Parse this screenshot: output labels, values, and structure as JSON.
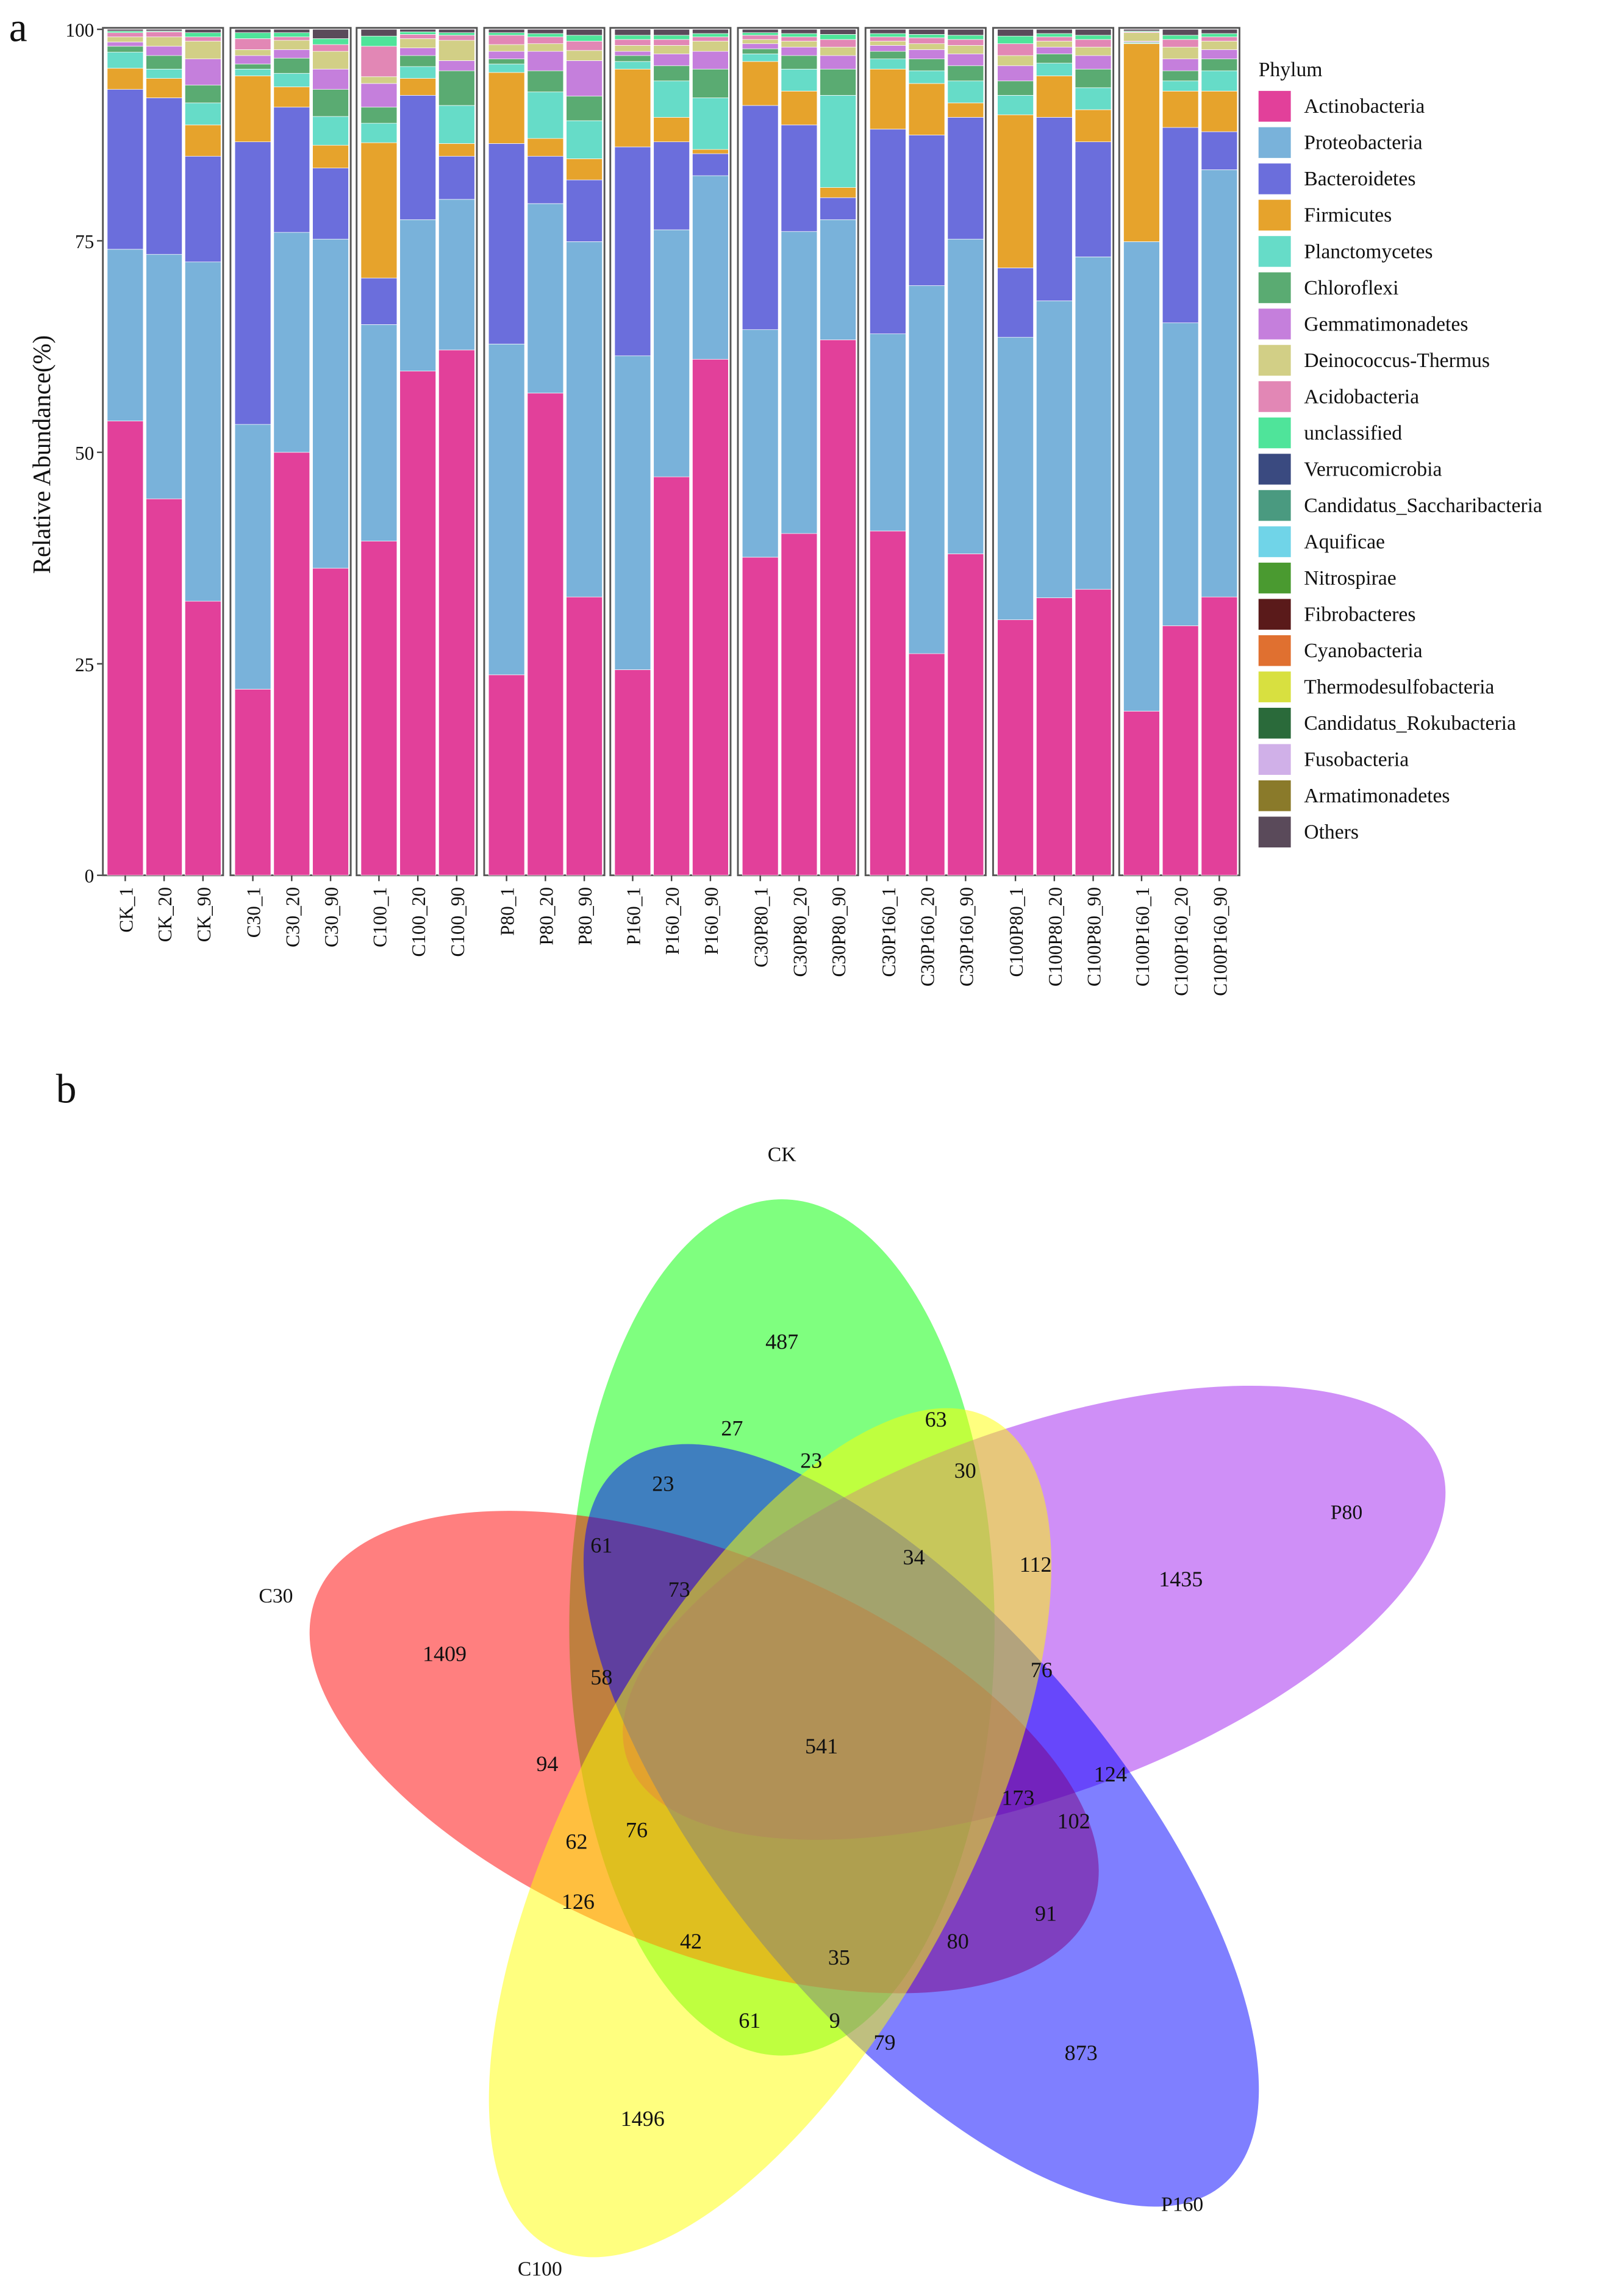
{
  "chart_data": [
    {
      "type": "bar",
      "stacked": true,
      "panel_label": "a",
      "ylabel": "Relative Abundance(%)",
      "ylim": [
        0,
        100
      ],
      "yticks": [
        "0",
        "25",
        "50",
        "75",
        "100"
      ],
      "legend_title": "Phylum",
      "legend_position": "right",
      "phyla": [
        "Actinobacteria",
        "Proteobacteria",
        "Bacteroidetes",
        "Firmicutes",
        "Planctomycetes",
        "Chloroflexi",
        "Gemmatimonadetes",
        "Deinococcus-Thermus",
        "Acidobacteria",
        "unclassified",
        "Verrucomicrobia",
        "Candidatus_Saccharibacteria",
        "Aquificae",
        "Nitrospirae",
        "Fibrobacteres",
        "Cyanobacteria",
        "Thermodesulfobacteria",
        "Candidatus_Rokubacteria",
        "Fusobacteria",
        "Armatimonadetes",
        "Others"
      ],
      "colors": [
        "#e2409a",
        "#79b2da",
        "#6b6edc",
        "#e6a32c",
        "#66dcc8",
        "#5aab72",
        "#c57fdc",
        "#d2cf86",
        "#e287b5",
        "#4fe49a",
        "#3a4a80",
        "#4a9a80",
        "#70d4e8",
        "#4a9a30",
        "#5a1a1a",
        "#e07030",
        "#d8e040",
        "#2a6a3a",
        "#d0b0e8",
        "#8a7a2a",
        "#5a4a5a"
      ],
      "groups": [
        {
          "name": "CK",
          "samples": [
            {
              "label": "CK_1",
              "cumulative_percent": [
                53.7,
                74.0,
                92.9,
                95.4,
                97.3,
                98.0,
                98.5,
                99.1,
                99.6,
                99.8
              ]
            },
            {
              "label": "CK_20",
              "cumulative_percent": [
                44.5,
                73.4,
                91.9,
                94.2,
                95.3,
                96.9,
                98.0,
                99.1,
                99.7,
                99.8
              ]
            },
            {
              "label": "CK_90",
              "cumulative_percent": [
                32.4,
                72.5,
                85.0,
                88.7,
                91.3,
                93.4,
                96.5,
                98.6,
                99.1,
                99.6
              ]
            }
          ]
        },
        {
          "name": "C30",
          "samples": [
            {
              "label": "C30_1",
              "cumulative_percent": [
                22.0,
                53.3,
                86.7,
                94.5,
                95.3,
                95.9,
                96.9,
                97.6,
                98.9,
                99.6
              ]
            },
            {
              "label": "C30_20",
              "cumulative_percent": [
                50.0,
                76.0,
                90.8,
                93.2,
                94.8,
                96.6,
                97.6,
                98.7,
                99.1,
                99.6
              ]
            },
            {
              "label": "C30_90",
              "cumulative_percent": [
                36.3,
                75.2,
                83.6,
                86.3,
                89.7,
                92.9,
                95.3,
                97.4,
                98.2,
                98.9
              ]
            }
          ]
        },
        {
          "name": "C100",
          "samples": [
            {
              "label": "C100_1",
              "cumulative_percent": [
                39.5,
                65.1,
                70.6,
                86.6,
                88.9,
                90.8,
                93.6,
                94.4,
                98.0,
                99.2
              ]
            },
            {
              "label": "C100_20",
              "cumulative_percent": [
                59.6,
                77.5,
                92.2,
                94.2,
                95.6,
                96.9,
                97.8,
                98.9,
                99.4,
                99.7
              ]
            },
            {
              "label": "C100_90",
              "cumulative_percent": [
                62.1,
                79.9,
                85.0,
                86.5,
                91.0,
                95.1,
                96.3,
                98.7,
                99.3,
                99.6
              ]
            }
          ]
        },
        {
          "name": "P80",
          "samples": [
            {
              "label": "P80_1",
              "cumulative_percent": [
                23.7,
                62.8,
                86.5,
                94.9,
                95.9,
                96.5,
                97.4,
                98.2,
                99.3,
                99.6
              ]
            },
            {
              "label": "P80_20",
              "cumulative_percent": [
                57.0,
                79.4,
                85.0,
                87.1,
                92.6,
                95.1,
                97.4,
                98.3,
                99.1,
                99.5
              ]
            },
            {
              "label": "P80_90",
              "cumulative_percent": [
                32.9,
                74.9,
                82.2,
                84.7,
                89.2,
                92.1,
                96.3,
                97.5,
                98.6,
                99.3
              ]
            }
          ]
        },
        {
          "name": "P160",
          "samples": [
            {
              "label": "P160_1",
              "cumulative_percent": [
                24.3,
                61.4,
                86.1,
                95.3,
                96.2,
                96.9,
                97.4,
                98.1,
                98.8,
                99.3
              ]
            },
            {
              "label": "P160_20",
              "cumulative_percent": [
                47.1,
                76.3,
                86.7,
                89.6,
                93.9,
                95.7,
                97.1,
                98.1,
                98.8,
                99.3
              ]
            },
            {
              "label": "P160_90",
              "cumulative_percent": [
                61.0,
                82.7,
                85.3,
                85.8,
                91.9,
                95.3,
                97.4,
                98.6,
                99.1,
                99.5
              ]
            }
          ]
        },
        {
          "name": "C30P80",
          "samples": [
            {
              "label": "C30P80_1",
              "cumulative_percent": [
                37.6,
                64.5,
                91.0,
                96.2,
                97.1,
                97.7,
                98.3,
                98.8,
                99.3,
                99.6
              ]
            },
            {
              "label": "C30P80_20",
              "cumulative_percent": [
                40.4,
                76.1,
                88.7,
                92.7,
                95.3,
                96.9,
                97.9,
                98.6,
                99.1,
                99.5
              ]
            },
            {
              "label": "C30P80_90",
              "cumulative_percent": [
                63.3,
                77.5,
                80.1,
                81.3,
                92.2,
                95.3,
                96.9,
                97.9,
                98.8,
                99.4
              ]
            }
          ]
        },
        {
          "name": "C30P160",
          "samples": [
            {
              "label": "C30P160_1",
              "cumulative_percent": [
                40.7,
                64.0,
                88.2,
                95.3,
                96.5,
                97.4,
                98.1,
                98.6,
                99.1,
                99.5
              ]
            },
            {
              "label": "C30P160_20",
              "cumulative_percent": [
                26.2,
                69.7,
                87.5,
                93.6,
                95.1,
                96.5,
                97.6,
                98.3,
                99.0,
                99.4
              ]
            },
            {
              "label": "C30P160_90",
              "cumulative_percent": [
                38.0,
                75.2,
                89.6,
                91.3,
                93.9,
                95.7,
                97.1,
                98.1,
                98.8,
                99.3
              ]
            }
          ]
        },
        {
          "name": "C100P80",
          "samples": [
            {
              "label": "C100P80_1",
              "cumulative_percent": [
                30.2,
                63.6,
                71.8,
                89.9,
                92.2,
                93.9,
                95.7,
                96.9,
                98.3,
                99.2
              ]
            },
            {
              "label": "C100P80_20",
              "cumulative_percent": [
                32.8,
                67.9,
                89.6,
                94.5,
                96.0,
                97.1,
                97.9,
                98.6,
                99.1,
                99.5
              ]
            },
            {
              "label": "C100P80_90",
              "cumulative_percent": [
                33.8,
                73.1,
                86.7,
                90.5,
                93.1,
                95.3,
                96.9,
                97.9,
                98.8,
                99.3
              ]
            }
          ]
        },
        {
          "name": "C100P160",
          "samples": [
            {
              "label": "C100P160_1",
              "cumulative_percent": [
                19.4,
                74.9,
                74.9,
                98.3,
                98.4,
                98.5,
                98.6,
                99.6,
                99.7,
                99.8
              ]
            },
            {
              "label": "C100P160_20",
              "cumulative_percent": [
                29.5,
                65.3,
                88.4,
                92.7,
                93.9,
                95.1,
                96.5,
                97.9,
                98.8,
                99.3
              ]
            },
            {
              "label": "C100P160_90",
              "cumulative_percent": [
                32.9,
                83.4,
                87.9,
                92.7,
                95.1,
                96.5,
                97.6,
                98.6,
                99.1,
                99.5
              ]
            }
          ]
        }
      ]
    },
    {
      "type": "venn",
      "panel_label": "b",
      "sets": [
        {
          "name": "CK",
          "color": "#00ff00"
        },
        {
          "name": "P80",
          "color": "#a020f0"
        },
        {
          "name": "C30",
          "color": "#ff0000"
        },
        {
          "name": "P160",
          "color": "#0000ff"
        },
        {
          "name": "C100",
          "color": "#ffff00"
        }
      ],
      "counts": [
        "487",
        "1435",
        "1409",
        "873",
        "1496",
        "27",
        "23",
        "63",
        "23",
        "30",
        "61",
        "34",
        "112",
        "73",
        "58",
        "76",
        "541",
        "94",
        "124",
        "173",
        "102",
        "62",
        "76",
        "126",
        "42",
        "35",
        "80",
        "91",
        "61",
        "9",
        "79"
      ]
    }
  ]
}
